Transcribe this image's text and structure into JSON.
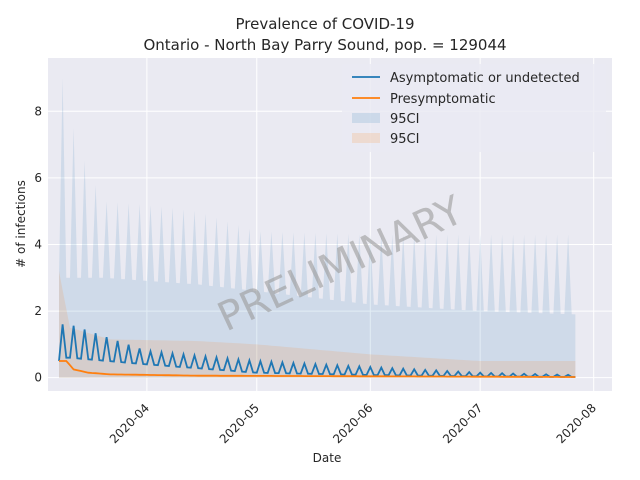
{
  "chart_data": {
    "type": "line",
    "title": "Prevalence of COVID-19",
    "subtitle": "Ontario - North Bay Parry Sound, pop. = 129044",
    "xlabel": "Date",
    "ylabel": "# of infections",
    "xlim": [
      "2020-03-05",
      "2020-08-06"
    ],
    "ylim": [
      -0.4,
      9.6
    ],
    "x_ticks": [
      "2020-04",
      "2020-05",
      "2020-06",
      "2020-07",
      "2020-08"
    ],
    "y_ticks": [
      0,
      2,
      4,
      6,
      8
    ],
    "grid": true,
    "legend_position": "top-right",
    "watermark": "PRELIMINARY",
    "start_date": "2020-03-08",
    "end_date": "2020-07-27",
    "series": [
      {
        "name": "Asymptomatic or undetected",
        "color": "#1f77b4",
        "peaks": [
          {
            "date": "2020-03-11",
            "value": 1.6
          },
          {
            "date": "2020-04-01",
            "value": 0.8
          },
          {
            "date": "2020-05-01",
            "value": 0.5
          },
          {
            "date": "2020-06-01",
            "value": 0.32
          },
          {
            "date": "2020-07-01",
            "value": 0.15
          },
          {
            "date": "2020-07-27",
            "value": 0.08
          }
        ],
        "troughs": [
          {
            "date": "2020-03-11",
            "value": 0.6
          },
          {
            "date": "2020-04-01",
            "value": 0.4
          },
          {
            "date": "2020-05-01",
            "value": 0.15
          },
          {
            "date": "2020-06-01",
            "value": 0.08
          },
          {
            "date": "2020-07-01",
            "value": 0.04
          },
          {
            "date": "2020-07-27",
            "value": 0.02
          }
        ]
      },
      {
        "name": "Presymptomatic",
        "color": "#ff7f0e",
        "values": [
          {
            "date": "2020-03-08",
            "value": 0.5
          },
          {
            "date": "2020-03-10",
            "value": 0.5
          },
          {
            "date": "2020-03-12",
            "value": 0.25
          },
          {
            "date": "2020-03-16",
            "value": 0.15
          },
          {
            "date": "2020-03-22",
            "value": 0.1
          },
          {
            "date": "2020-04-15",
            "value": 0.06
          },
          {
            "date": "2020-07-27",
            "value": 0.02
          }
        ]
      }
    ],
    "bands": [
      {
        "name": "95CI",
        "color": "#1f77b4",
        "upper_peaks": [
          {
            "date": "2020-03-09",
            "value": 9.0
          },
          {
            "date": "2020-03-13",
            "value": 7.0
          },
          {
            "date": "2020-03-20",
            "value": 5.3
          },
          {
            "date": "2020-04-01",
            "value": 5.2
          },
          {
            "date": "2020-04-15",
            "value": 5.0
          },
          {
            "date": "2020-05-01",
            "value": 4.4
          },
          {
            "date": "2020-06-01",
            "value": 4.3
          },
          {
            "date": "2020-07-27",
            "value": 4.3
          }
        ],
        "upper_troughs": [
          {
            "date": "2020-03-09",
            "value": 3.0
          },
          {
            "date": "2020-03-20",
            "value": 3.0
          },
          {
            "date": "2020-04-15",
            "value": 2.8
          },
          {
            "date": "2020-05-01",
            "value": 2.6
          },
          {
            "date": "2020-06-01",
            "value": 2.2
          },
          {
            "date": "2020-07-01",
            "value": 2.0
          },
          {
            "date": "2020-07-27",
            "value": 1.9
          }
        ],
        "lower": 0
      },
      {
        "name": "95CI",
        "color": "#ff7f0e",
        "upper": [
          {
            "date": "2020-03-08",
            "value": 3.2
          },
          {
            "date": "2020-03-11",
            "value": 1.5
          },
          {
            "date": "2020-03-22",
            "value": 1.15
          },
          {
            "date": "2020-04-15",
            "value": 1.1
          },
          {
            "date": "2020-05-01",
            "value": 1.0
          },
          {
            "date": "2020-06-01",
            "value": 0.7
          },
          {
            "date": "2020-07-01",
            "value": 0.5
          },
          {
            "date": "2020-07-27",
            "value": 0.5
          }
        ],
        "lower": 0
      }
    ]
  }
}
